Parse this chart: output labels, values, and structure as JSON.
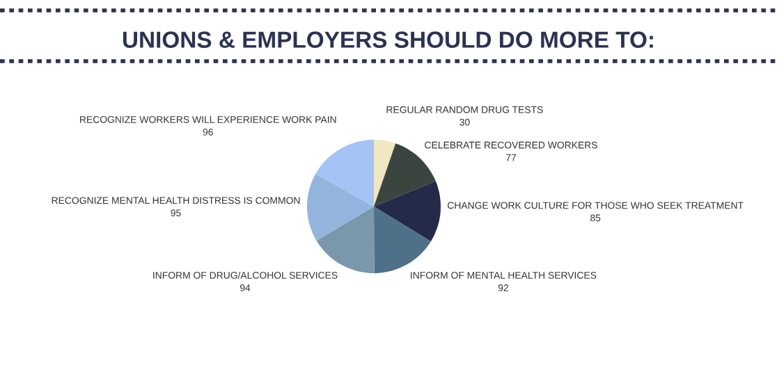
{
  "chart_data": {
    "type": "pie",
    "title": "UNIONS & EMPLOYERS SHOULD DO MORE TO:",
    "categories": [
      "REGULAR RANDOM DRUG TESTS",
      "CELEBRATE RECOVERED WORKERS",
      "CHANGE WORK CULTURE FOR THOSE WHO SEEK TREATMENT",
      "INFORM OF MENTAL HEALTH SERVICES",
      "INFORM OF DRUG/ALCOHOL SERVICES",
      "RECOGNIZE MENTAL HEALTH DISTRESS IS COMMON",
      "RECOGNIZE WORKERS WILL EXPERIENCE WORK PAIN"
    ],
    "values": [
      30,
      77,
      85,
      92,
      94,
      95,
      96
    ],
    "colors": [
      "#f0e6c0",
      "#3b4540",
      "#232a4a",
      "#4e7088",
      "#7a97ab",
      "#93b5dd",
      "#a3c4f5"
    ],
    "data_labels": true,
    "legend": false
  }
}
